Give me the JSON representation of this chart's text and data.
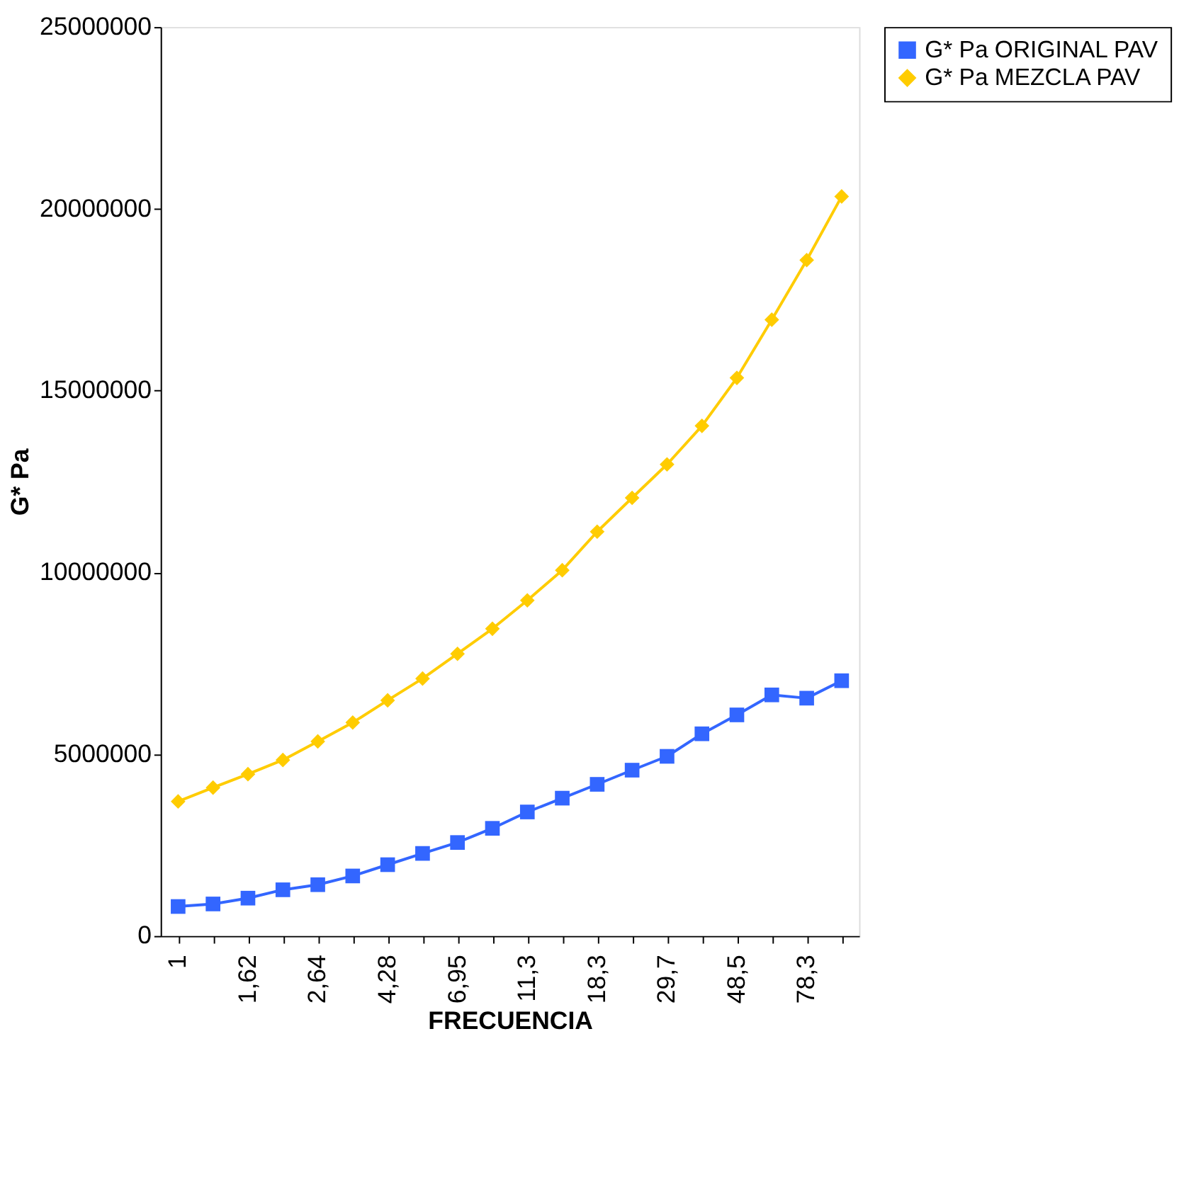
{
  "chart_data": {
    "type": "line",
    "xlabel": "FRECUENCIA",
    "ylabel": "G* Pa",
    "categories": [
      "1",
      null,
      "1,62",
      null,
      "2,64",
      null,
      "4,28",
      null,
      "6,95",
      null,
      "11,3",
      null,
      "18,3",
      null,
      "29,7",
      null,
      "48,5",
      null,
      "78,3",
      null
    ],
    "series": [
      {
        "name": "G* Pa ORIGINAL PAV",
        "color": "#3366ff",
        "marker": "square",
        "values": [
          810000,
          880000,
          1040000,
          1270000,
          1410000,
          1650000,
          1960000,
          2270000,
          2570000,
          2960000,
          3410000,
          3790000,
          4170000,
          4560000,
          4940000,
          5560000,
          6080000,
          6630000,
          6540000,
          7020000
        ]
      },
      {
        "name": "G* Pa MEZCLA PAV",
        "color": "#ffcc00",
        "marker": "diamond",
        "values": [
          3700000,
          4080000,
          4450000,
          4840000,
          5350000,
          5870000,
          6480000,
          7080000,
          7760000,
          8450000,
          9230000,
          10060000,
          11120000,
          12050000,
          12970000,
          14030000,
          15350000,
          16950000,
          18590000,
          20340000
        ]
      }
    ],
    "ylim": [
      0,
      25000000
    ],
    "yticks": [
      0,
      5000000,
      10000000,
      15000000,
      20000000,
      25000000
    ],
    "grid": false,
    "legend": "right",
    "line_style": "solid"
  }
}
